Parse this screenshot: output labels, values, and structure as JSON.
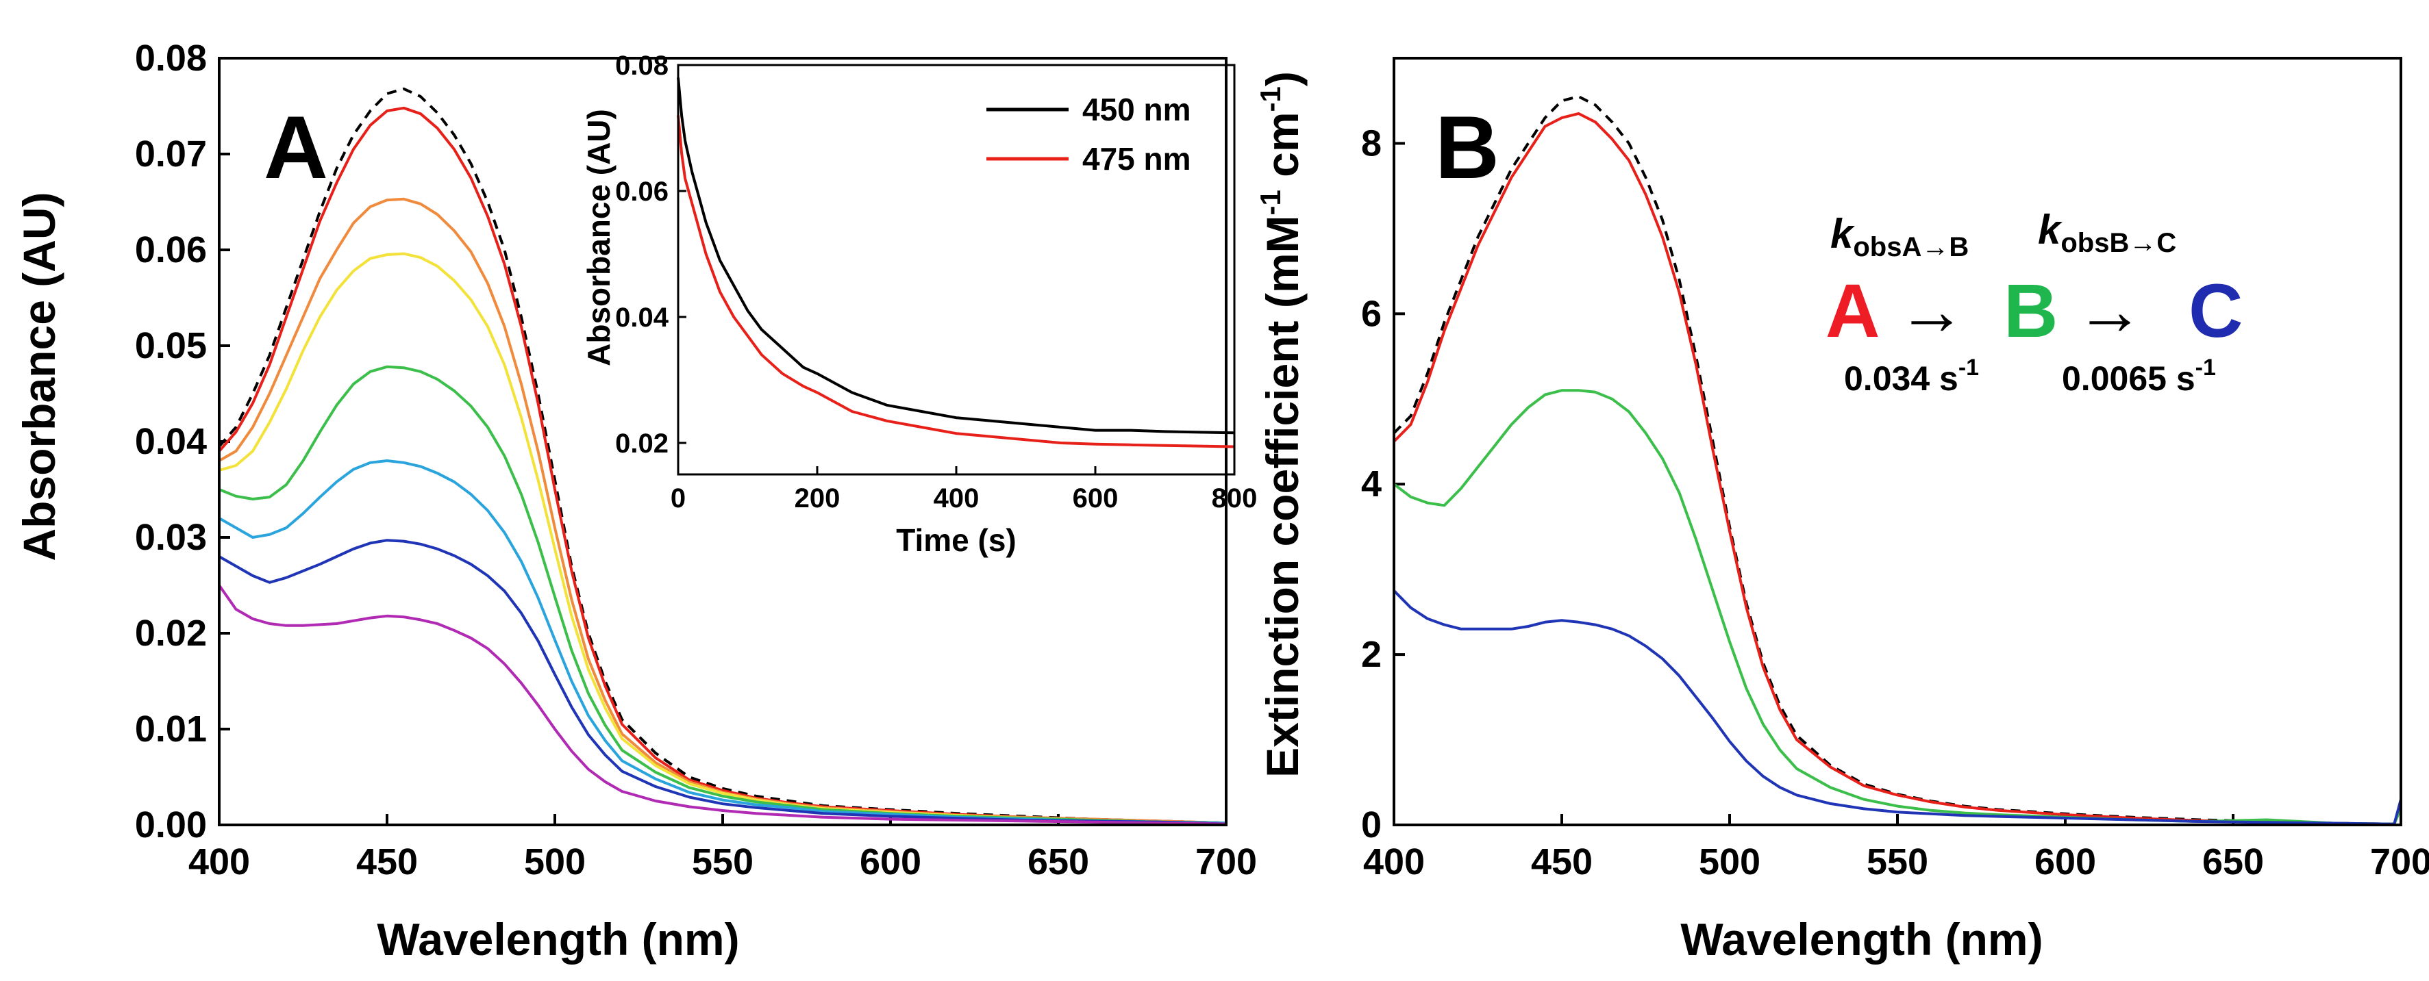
{
  "chart_data": [
    {
      "panel": "A",
      "type": "line",
      "panel_label": "A",
      "xlabel": "Wavelength (nm)",
      "ylabel": "Absorbance (AU)",
      "xlim": [
        400,
        700
      ],
      "ylim": [
        0,
        0.08
      ],
      "xticks": [
        400,
        450,
        500,
        550,
        600,
        650,
        700
      ],
      "yticks": [
        0.0,
        0.01,
        0.02,
        0.03,
        0.04,
        0.05,
        0.06,
        0.07,
        0.08
      ],
      "ytick_labels": [
        "0.00",
        "0.01",
        "0.02",
        "0.03",
        "0.04",
        "0.05",
        "0.06",
        "0.07",
        "0.08"
      ],
      "x": [
        400,
        405,
        410,
        415,
        420,
        425,
        430,
        435,
        440,
        445,
        450,
        455,
        460,
        465,
        470,
        475,
        480,
        485,
        490,
        495,
        500,
        505,
        510,
        515,
        520,
        530,
        540,
        550,
        560,
        570,
        580,
        600,
        620,
        640,
        660,
        680,
        700
      ],
      "series": [
        {
          "name": "dashed",
          "color": "#000000",
          "dashed": true,
          "values": [
            0.0395,
            0.0415,
            0.045,
            0.049,
            0.054,
            0.059,
            0.064,
            0.0685,
            0.072,
            0.0745,
            0.0763,
            0.0768,
            0.076,
            0.0743,
            0.072,
            0.069,
            0.065,
            0.06,
            0.053,
            0.045,
            0.036,
            0.027,
            0.02,
            0.015,
            0.011,
            0.0075,
            0.005,
            0.0038,
            0.003,
            0.0025,
            0.002,
            0.0016,
            0.0012,
            0.0009,
            0.0006,
            0.0004,
            0.0002
          ]
        },
        {
          "name": "red",
          "color": "#e8201a",
          "dashed": false,
          "values": [
            0.039,
            0.041,
            0.044,
            0.048,
            0.053,
            0.058,
            0.063,
            0.067,
            0.0705,
            0.073,
            0.0745,
            0.0748,
            0.0742,
            0.0727,
            0.0705,
            0.0675,
            0.0635,
            0.0585,
            0.052,
            0.044,
            0.035,
            0.0265,
            0.0195,
            0.0145,
            0.0105,
            0.007,
            0.0047,
            0.0036,
            0.0028,
            0.0023,
            0.0019,
            0.0015,
            0.0011,
            0.0008,
            0.0006,
            0.0004,
            0.0002
          ]
        },
        {
          "name": "orange",
          "color": "#f08a3c",
          "dashed": false,
          "values": [
            0.038,
            0.039,
            0.0415,
            0.045,
            0.049,
            0.053,
            0.057,
            0.06,
            0.0628,
            0.0645,
            0.0652,
            0.0653,
            0.0648,
            0.0637,
            0.062,
            0.0598,
            0.0565,
            0.052,
            0.046,
            0.039,
            0.031,
            0.0235,
            0.0173,
            0.013,
            0.0095,
            0.0065,
            0.0045,
            0.0034,
            0.0027,
            0.0022,
            0.0018,
            0.0014,
            0.001,
            0.0008,
            0.0006,
            0.0004,
            0.0002
          ]
        },
        {
          "name": "yellow",
          "color": "#f3e23a",
          "dashed": false,
          "values": [
            0.037,
            0.0375,
            0.039,
            0.042,
            0.0455,
            0.0495,
            0.053,
            0.0558,
            0.0578,
            0.0591,
            0.0595,
            0.0596,
            0.0592,
            0.0583,
            0.0568,
            0.0548,
            0.052,
            0.048,
            0.0425,
            0.036,
            0.0288,
            0.0218,
            0.0162,
            0.0122,
            0.009,
            0.0062,
            0.0043,
            0.0033,
            0.0026,
            0.0021,
            0.0017,
            0.0013,
            0.001,
            0.0007,
            0.0005,
            0.0003,
            0.0002
          ]
        },
        {
          "name": "green",
          "color": "#3bbf4a",
          "dashed": false,
          "values": [
            0.035,
            0.0343,
            0.034,
            0.0342,
            0.0355,
            0.038,
            0.041,
            0.0438,
            0.046,
            0.0473,
            0.0478,
            0.0477,
            0.0473,
            0.0465,
            0.0453,
            0.0437,
            0.0415,
            0.0385,
            0.0345,
            0.0295,
            0.0238,
            0.0182,
            0.0137,
            0.0104,
            0.0078,
            0.0055,
            0.0039,
            0.003,
            0.0024,
            0.002,
            0.0016,
            0.0012,
            0.0009,
            0.0007,
            0.0005,
            0.0003,
            0.0002
          ]
        },
        {
          "name": "cyan",
          "color": "#2aa4dd",
          "dashed": false,
          "values": [
            0.032,
            0.031,
            0.03,
            0.0303,
            0.031,
            0.0325,
            0.0342,
            0.0358,
            0.0371,
            0.0378,
            0.038,
            0.0378,
            0.0374,
            0.0367,
            0.0358,
            0.0345,
            0.0328,
            0.0305,
            0.0275,
            0.0237,
            0.0193,
            0.015,
            0.0114,
            0.0088,
            0.0067,
            0.0048,
            0.0034,
            0.0026,
            0.0021,
            0.0018,
            0.0014,
            0.0011,
            0.0008,
            0.0006,
            0.0004,
            0.0003,
            0.0002
          ]
        },
        {
          "name": "blue",
          "color": "#1f35b5",
          "dashed": false,
          "values": [
            0.028,
            0.027,
            0.026,
            0.0253,
            0.0258,
            0.0265,
            0.0272,
            0.028,
            0.0288,
            0.0294,
            0.0297,
            0.0296,
            0.0293,
            0.0288,
            0.0281,
            0.0272,
            0.026,
            0.0244,
            0.0221,
            0.0192,
            0.0157,
            0.0123,
            0.0094,
            0.0073,
            0.0056,
            0.004,
            0.0029,
            0.0022,
            0.0018,
            0.0015,
            0.0012,
            0.0009,
            0.0007,
            0.0005,
            0.0004,
            0.0003,
            0.0001
          ]
        },
        {
          "name": "purple",
          "color": "#b02ab3",
          "dashed": false,
          "values": [
            0.025,
            0.0225,
            0.0215,
            0.021,
            0.0208,
            0.0208,
            0.0209,
            0.021,
            0.0213,
            0.0216,
            0.0218,
            0.0217,
            0.0214,
            0.021,
            0.0203,
            0.0195,
            0.0184,
            0.0168,
            0.0148,
            0.0125,
            0.01,
            0.0077,
            0.0058,
            0.0045,
            0.0035,
            0.0025,
            0.0019,
            0.0015,
            0.0012,
            0.001,
            0.0008,
            0.0006,
            0.0005,
            0.0004,
            0.0003,
            0.0002,
            0.0001
          ]
        }
      ],
      "inset": {
        "type": "line",
        "xlabel": "Time (s)",
        "ylabel": "Absorbance (AU)",
        "xlim": [
          0,
          800
        ],
        "ylim": [
          0.015,
          0.08
        ],
        "xticks": [
          0,
          200,
          400,
          600,
          800
        ],
        "yticks": [
          0.02,
          0.04,
          0.06,
          0.08
        ],
        "ytick_labels": [
          "0.02",
          "0.04",
          "0.06",
          "0.08"
        ],
        "legend": [
          {
            "label": "450 nm",
            "color": "#000000"
          },
          {
            "label": "475 nm",
            "color": "#e8201a"
          }
        ],
        "x": [
          0,
          5,
          10,
          20,
          30,
          40,
          50,
          60,
          80,
          100,
          120,
          150,
          180,
          200,
          250,
          300,
          350,
          400,
          450,
          500,
          550,
          600,
          650,
          700,
          750,
          800
        ],
        "series": [
          {
            "name": "450 nm",
            "color": "#000000",
            "values": [
              0.078,
              0.072,
              0.068,
              0.063,
              0.059,
              0.055,
              0.052,
              0.049,
              0.045,
              0.041,
              0.038,
              0.035,
              0.032,
              0.031,
              0.028,
              0.026,
              0.025,
              0.024,
              0.0235,
              0.023,
              0.0225,
              0.022,
              0.022,
              0.0218,
              0.0217,
              0.0216
            ]
          },
          {
            "name": "475 nm",
            "color": "#e8201a",
            "values": [
              0.072,
              0.066,
              0.062,
              0.058,
              0.054,
              0.05,
              0.047,
              0.044,
              0.04,
              0.037,
              0.034,
              0.031,
              0.029,
              0.028,
              0.025,
              0.0235,
              0.0225,
              0.0215,
              0.021,
              0.0205,
              0.02,
              0.0198,
              0.0197,
              0.0196,
              0.0195,
              0.0194
            ]
          }
        ]
      }
    },
    {
      "panel": "B",
      "type": "line",
      "panel_label": "B",
      "xlabel": "Wavelength (nm)",
      "ylabel_main": "Extinction coefficient (mM",
      "ylabel_sup1": "-1",
      "ylabel_mid": " cm",
      "ylabel_sup2": "-1",
      "ylabel_end": ")",
      "xlim": [
        400,
        700
      ],
      "ylim": [
        0,
        9
      ],
      "xticks": [
        400,
        450,
        500,
        550,
        600,
        650,
        700
      ],
      "yticks": [
        0,
        2,
        4,
        6,
        8
      ],
      "ytick_labels": [
        "0",
        "2",
        "4",
        "6",
        "8"
      ],
      "x": [
        400,
        405,
        410,
        415,
        420,
        425,
        430,
        435,
        440,
        445,
        450,
        455,
        460,
        465,
        470,
        475,
        480,
        485,
        490,
        495,
        500,
        505,
        510,
        515,
        520,
        530,
        540,
        550,
        560,
        570,
        580,
        600,
        620,
        640,
        660,
        680,
        698,
        700
      ],
      "series": [
        {
          "name": "dashed",
          "color": "#000000",
          "dashed": true,
          "values": [
            4.6,
            4.8,
            5.3,
            5.9,
            6.4,
            6.9,
            7.3,
            7.7,
            8.0,
            8.3,
            8.5,
            8.55,
            8.45,
            8.25,
            8.0,
            7.6,
            7.1,
            6.4,
            5.5,
            4.5,
            3.5,
            2.6,
            1.9,
            1.4,
            1.05,
            0.7,
            0.48,
            0.36,
            0.28,
            0.22,
            0.18,
            0.13,
            0.09,
            0.06,
            0.04,
            0.02,
            0.01,
            0.25
          ]
        },
        {
          "name": "red",
          "color": "#e8201a",
          "dashed": false,
          "values": [
            4.5,
            4.7,
            5.2,
            5.8,
            6.3,
            6.8,
            7.2,
            7.6,
            7.9,
            8.2,
            8.3,
            8.35,
            8.25,
            8.05,
            7.8,
            7.4,
            6.9,
            6.25,
            5.4,
            4.4,
            3.45,
            2.55,
            1.85,
            1.35,
            1.0,
            0.68,
            0.46,
            0.35,
            0.27,
            0.21,
            0.17,
            0.12,
            0.08,
            0.05,
            0.03,
            0.02,
            0.01,
            0.22
          ]
        },
        {
          "name": "green",
          "color": "#3bbf4a",
          "dashed": false,
          "values": [
            4.0,
            3.85,
            3.78,
            3.75,
            3.95,
            4.2,
            4.45,
            4.7,
            4.9,
            5.05,
            5.1,
            5.1,
            5.08,
            5.0,
            4.85,
            4.6,
            4.3,
            3.9,
            3.35,
            2.75,
            2.15,
            1.6,
            1.18,
            0.88,
            0.66,
            0.44,
            0.3,
            0.22,
            0.17,
            0.14,
            0.12,
            0.09,
            0.06,
            0.04,
            0.06,
            0.02,
            0.01,
            0.2
          ]
        },
        {
          "name": "blue",
          "color": "#1f35b5",
          "dashed": false,
          "values": [
            2.75,
            2.55,
            2.42,
            2.35,
            2.3,
            2.3,
            2.3,
            2.3,
            2.33,
            2.38,
            2.4,
            2.38,
            2.35,
            2.3,
            2.22,
            2.1,
            1.95,
            1.75,
            1.5,
            1.25,
            0.98,
            0.75,
            0.57,
            0.44,
            0.35,
            0.25,
            0.19,
            0.15,
            0.13,
            0.11,
            0.1,
            0.08,
            0.06,
            0.04,
            0.03,
            0.02,
            0.01,
            0.3
          ]
        }
      ],
      "scheme": {
        "k1_symbol": "k",
        "k1_sub": "obsA→B",
        "k2_symbol": "k",
        "k2_sub": "obsB→C",
        "species": [
          {
            "label": "A",
            "color": "#ee1c24"
          },
          {
            "label": "B",
            "color": "#1fb74d"
          },
          {
            "label": "C",
            "color": "#1f2cb0"
          }
        ],
        "arrow": "→",
        "rate1": "0.034 s",
        "rate1_sup": "-1",
        "rate2": "0.0065 s",
        "rate2_sup": "-1"
      }
    }
  ]
}
